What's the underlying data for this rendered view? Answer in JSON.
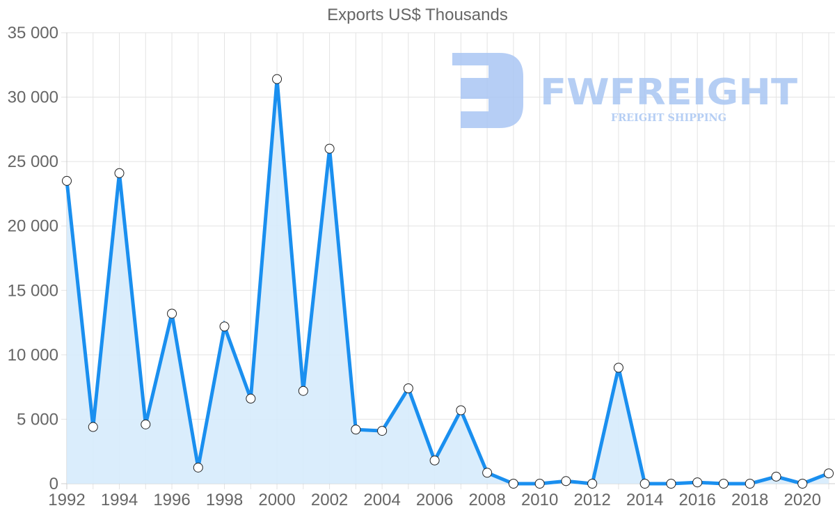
{
  "chart_data": {
    "type": "area",
    "title": "Exports US$ Thousands",
    "xlabel": "",
    "ylabel": "",
    "x": [
      1992,
      1993,
      1994,
      1995,
      1996,
      1997,
      1998,
      1999,
      2000,
      2001,
      2002,
      2003,
      2004,
      2005,
      2006,
      2007,
      2008,
      2009,
      2010,
      2011,
      2012,
      2013,
      2014,
      2015,
      2016,
      2017,
      2018,
      2019,
      2020,
      2021
    ],
    "series": [
      {
        "name": "Exports US$ Thousands",
        "values": [
          23500,
          4400,
          24100,
          4600,
          13200,
          1250,
          12200,
          6600,
          31400,
          7200,
          26000,
          4200,
          4100,
          7400,
          1800,
          5700,
          850,
          0,
          0,
          200,
          0,
          9000,
          0,
          0,
          100,
          0,
          0,
          550,
          0,
          800
        ]
      }
    ],
    "ylim": [
      0,
      35000
    ],
    "yticks": [
      "0",
      "5 000",
      "10 000",
      "15 000",
      "20 000",
      "25 000",
      "30 000",
      "35 000"
    ],
    "xticks": [
      "1992",
      "1994",
      "1996",
      "1998",
      "2000",
      "2002",
      "2004",
      "2006",
      "2008",
      "2010",
      "2012",
      "2014",
      "2016",
      "2018",
      "2020"
    ],
    "grid": true,
    "legend": "none",
    "colors": {
      "line": "#1a8fef",
      "fill": "#d6ebfc",
      "point_fill": "#ffffff",
      "point_stroke": "#222222",
      "grid": "#e3e3e3",
      "text": "#666666"
    }
  },
  "watermark": {
    "brand": "FWFREIGHT",
    "tagline": "FREIGHT SHIPPING",
    "color": "#a9c6f3"
  }
}
